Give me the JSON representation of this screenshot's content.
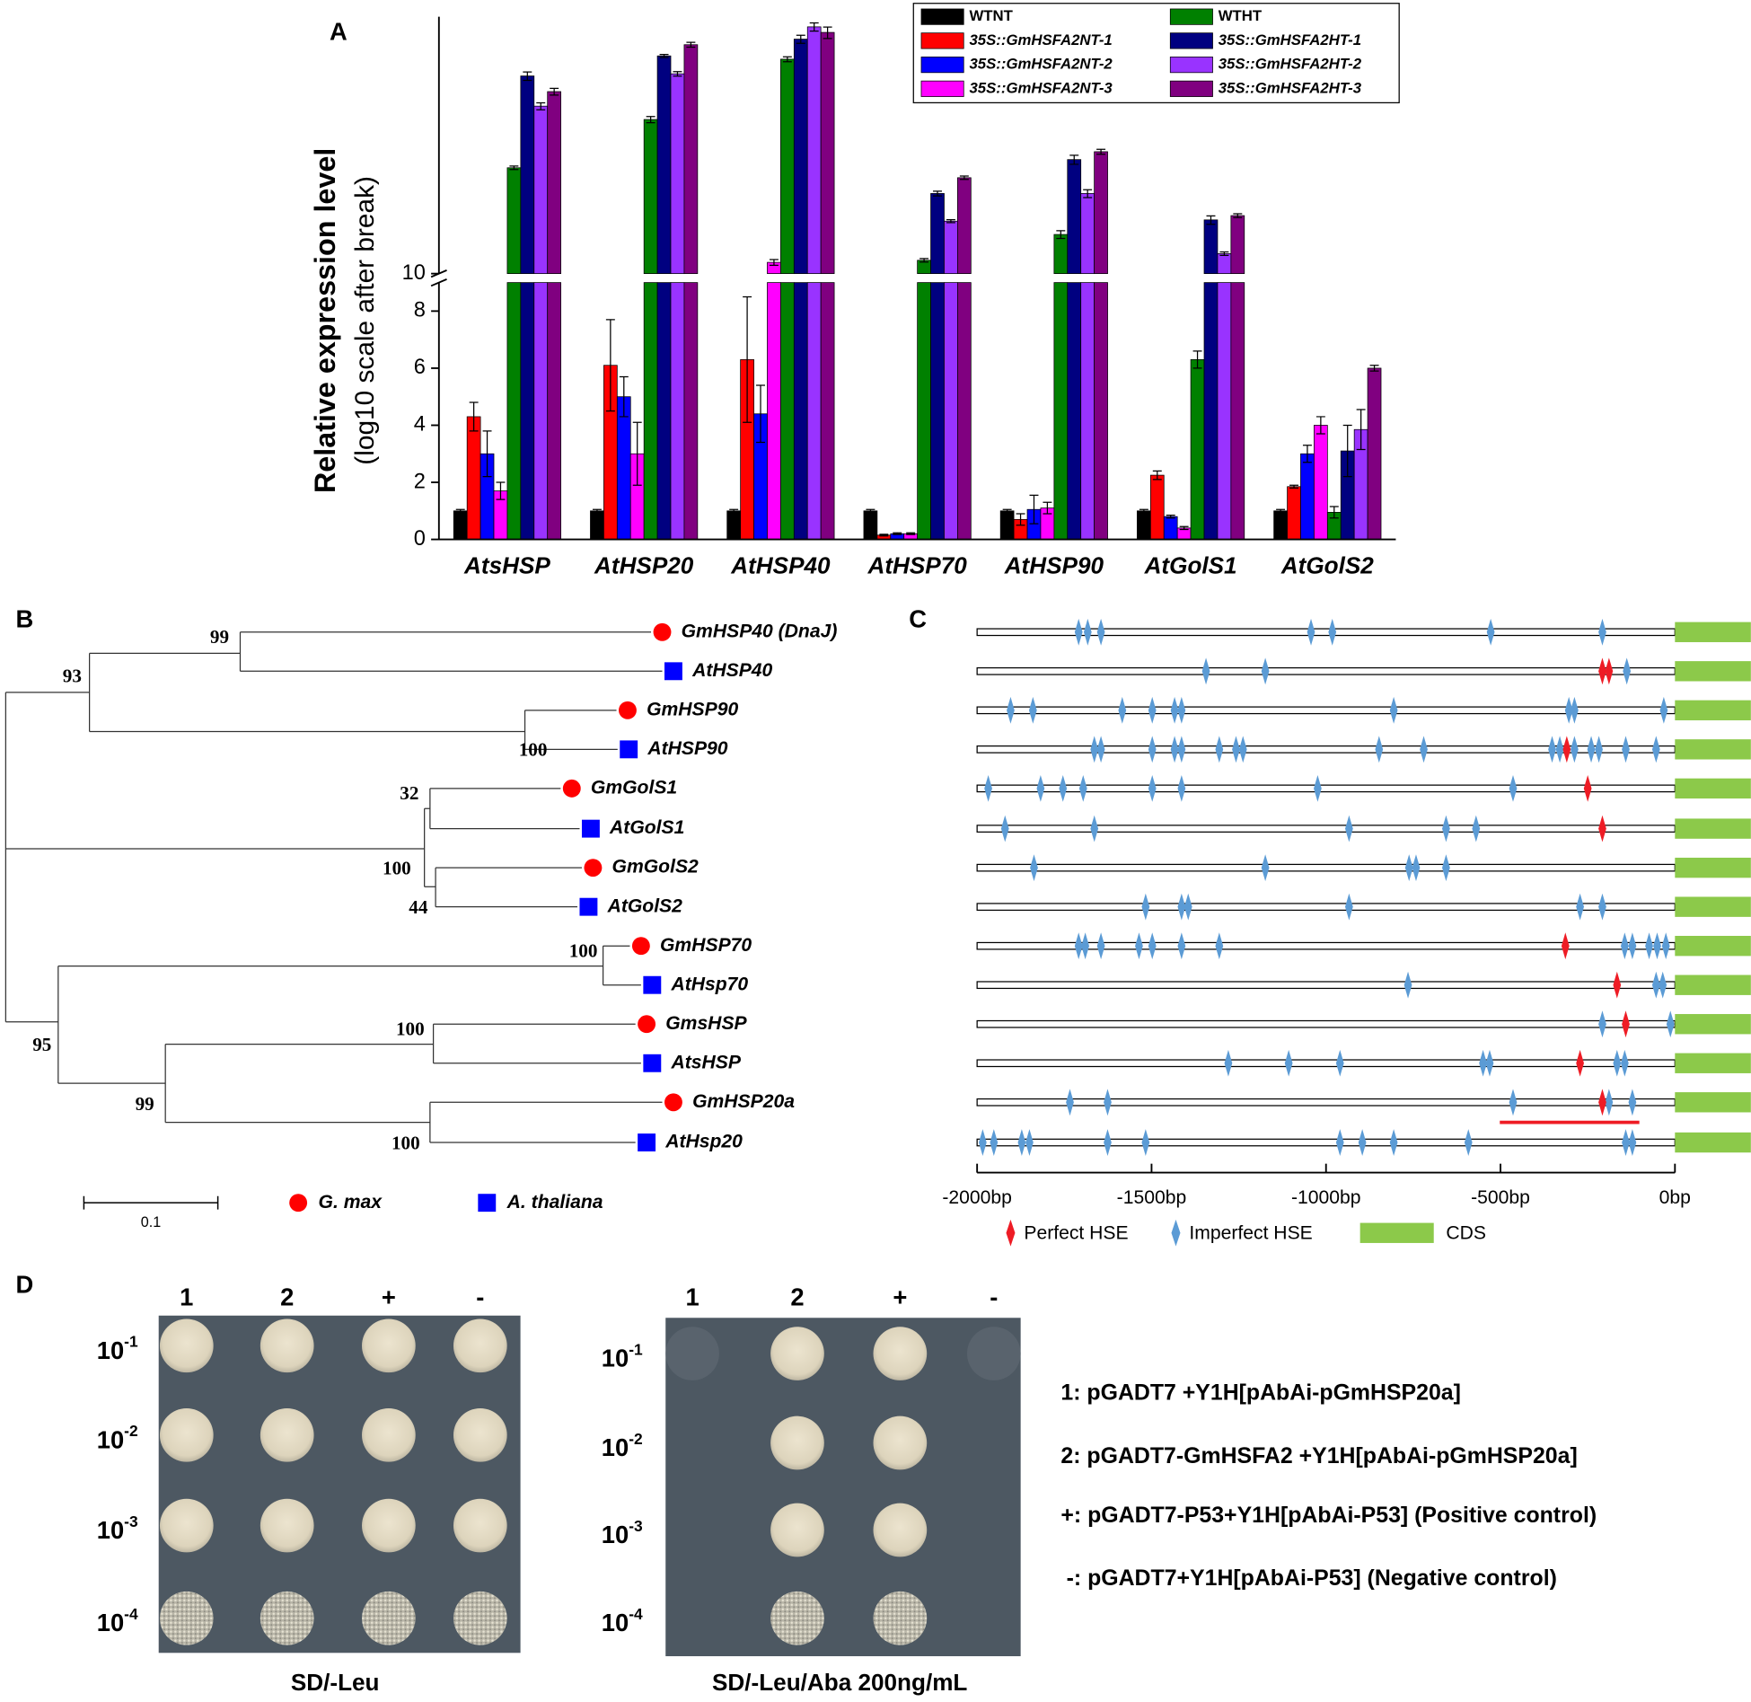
{
  "panels": {
    "A": "A",
    "B": "B",
    "C": "C",
    "D": "D"
  },
  "chart_data": {
    "type": "bar",
    "y_label": "Relative expression level",
    "y_label_sub": "(log10 scale after break)",
    "categories": [
      "AtsHSP",
      "AtHSP20",
      "AtHSP40",
      "AtHSP70",
      "AtHSP90",
      "AtGolS1",
      "AtGolS2"
    ],
    "ylim": [
      0,
      9
    ],
    "yticks": [
      0,
      2,
      4,
      6,
      8
    ],
    "y2lim": [
      10,
      2800
    ],
    "y2ticks": [
      10
    ],
    "y2_log": true,
    "legend": "top-right",
    "series": [
      {
        "name": "WTNT",
        "color": "#000000",
        "values": [
          1,
          1,
          1,
          1,
          1,
          1,
          1
        ],
        "errors": [
          0.05,
          0.05,
          0.05,
          0.05,
          0.05,
          0.05,
          0.05
        ]
      },
      {
        "name": "35S::GmHSFA2NT-1",
        "color": "#ff0000",
        "values": [
          4.3,
          6.1,
          6.3,
          0.15,
          0.7,
          2.25,
          1.85
        ],
        "errors": [
          0.5,
          1.6,
          2.2,
          0.03,
          0.2,
          0.15,
          0.05
        ]
      },
      {
        "name": "35S::GmHSFA2NT-2",
        "color": "#0000ff",
        "values": [
          3.0,
          5.0,
          4.4,
          0.2,
          1.05,
          0.8,
          3.0
        ],
        "errors": [
          0.8,
          0.7,
          1.0,
          0.03,
          0.5,
          0.05,
          0.3
        ]
      },
      {
        "name": "35S::GmHSFA2NT-3",
        "color": "#ff00ff",
        "values": [
          1.7,
          3.0,
          12.8,
          0.2,
          1.1,
          0.4,
          4.0
        ],
        "errors": [
          0.3,
          1.1,
          0.8,
          0.03,
          0.2,
          0.05,
          0.3
        ]
      },
      {
        "name": "WTHT",
        "color": "#008000",
        "values": [
          102,
          294,
          1104,
          13.4,
          23.6,
          6.3,
          0.95
        ],
        "errors": [
          4,
          20,
          60,
          0.5,
          2,
          0.3,
          0.2
        ]
      },
      {
        "name": "35S::GmHSFA2HT-1",
        "color": "#000080",
        "values": [
          764,
          1186,
          1714,
          58,
          122,
          32.5,
          3.1
        ],
        "errors": [
          70,
          40,
          150,
          3,
          12,
          3,
          0.9
        ]
      },
      {
        "name": "35S::GmHSFA2HT-2",
        "color": "#9933ff",
        "values": [
          394,
          801,
          2244,
          31.6,
          58,
          15.5,
          3.85
        ],
        "errors": [
          30,
          40,
          200,
          1,
          5,
          0.6,
          0.7
        ]
      },
      {
        "name": "35S::GmHSFA2HT-3",
        "color": "#800080",
        "values": [
          542,
          1517,
          1986,
          82,
          145,
          35.7,
          6.0
        ],
        "errors": [
          40,
          80,
          250,
          3,
          8,
          1.5,
          0.1
        ]
      }
    ]
  },
  "tree": {
    "leaves": [
      {
        "label": "GmHSP40 (DnaJ)",
        "species": 0
      },
      {
        "label": "AtHSP40",
        "species": 1
      },
      {
        "label": "GmHSP90",
        "species": 0
      },
      {
        "label": "AtHSP90",
        "species": 1
      },
      {
        "label": "GmGolS1",
        "species": 0
      },
      {
        "label": "AtGolS1",
        "species": 1
      },
      {
        "label": "GmGolS2",
        "species": 0
      },
      {
        "label": "AtGolS2",
        "species": 1
      },
      {
        "label": "GmHSP70",
        "species": 0
      },
      {
        "label": "AtHsp70",
        "species": 1
      },
      {
        "label": "GmsHSP",
        "species": 0
      },
      {
        "label": "AtsHSP",
        "species": 1
      },
      {
        "label": "GmHSP20a",
        "species": 0
      },
      {
        "label": "AtHsp20",
        "species": 1
      }
    ],
    "bootstraps": [
      99,
      93,
      100,
      32,
      100,
      44,
      100,
      95,
      100,
      99,
      100
    ],
    "scale": "0.1",
    "species": [
      {
        "name": "G. max",
        "color": "#ff0000"
      },
      {
        "name": "A. thaliana",
        "color": "#0000ff"
      }
    ]
  },
  "promoter": {
    "xlim": [
      -2000,
      0
    ],
    "xticks": [
      {
        "value": -2000,
        "label": "-2000bp"
      },
      {
        "value": -1500,
        "label": "-1500bp"
      },
      {
        "value": -1000,
        "label": "-1000bp"
      },
      {
        "value": -500,
        "label": "-500bp"
      },
      {
        "value": 0,
        "label": "0bp"
      }
    ],
    "legend": [
      {
        "name": "Perfect HSE",
        "color": "#ee1c25"
      },
      {
        "name": "Imperfect HSE",
        "color": "#5b9bd5"
      },
      {
        "name": "CDS",
        "color": "#8cc94a"
      }
    ],
    "rows": [
      {
        "perfect": [],
        "imperfect": [
          -1709,
          -1683,
          -1645,
          -1043,
          -982,
          -528,
          -208
        ]
      },
      {
        "perfect": [
          -208,
          -189
        ],
        "imperfect": [
          -1344,
          -1174,
          -138
        ]
      },
      {
        "perfect": [],
        "imperfect": [
          -1904,
          -1840,
          -1584,
          -1498,
          -1434,
          -1414,
          -806,
          -304,
          -288,
          -32
        ]
      },
      {
        "perfect": [
          -310
        ],
        "imperfect": [
          -1664,
          -1645,
          -1498,
          -1434,
          -1414,
          -1306,
          -1258,
          -1238,
          -848,
          -720,
          -352,
          -330,
          -288,
          -240,
          -218,
          -141,
          -54
        ]
      },
      {
        "perfect": [
          -250
        ],
        "imperfect": [
          -1968,
          -1818,
          -1754,
          -1696,
          -1498,
          -1414,
          -1024,
          -464
        ]
      },
      {
        "perfect": [
          -208
        ],
        "imperfect": [
          -1920,
          -1664,
          -934,
          -656,
          -570
        ]
      },
      {
        "perfect": [],
        "imperfect": [
          -1837,
          -1174,
          -762,
          -742,
          -656
        ]
      },
      {
        "perfect": [],
        "imperfect": [
          -1517,
          -1414,
          -1395,
          -934,
          -272,
          -208
        ]
      },
      {
        "perfect": [
          -314
        ],
        "imperfect": [
          -1709,
          -1690,
          -1645,
          -1536,
          -1498,
          -1414,
          -1306,
          -144,
          -122,
          -74,
          -51,
          -26
        ]
      },
      {
        "perfect": [
          -166
        ],
        "imperfect": [
          -765,
          -54,
          -35
        ]
      },
      {
        "perfect": [
          -141
        ],
        "imperfect": [
          -208,
          -13
        ]
      },
      {
        "perfect": [
          -272
        ],
        "imperfect": [
          -1280,
          -1107,
          -960,
          -550,
          -531,
          -166,
          -144
        ]
      },
      {
        "perfect": [
          -208
        ],
        "imperfect": [
          -1734,
          -1626,
          -464,
          -189,
          -122
        ],
        "underline": [
          -502,
          -102
        ]
      },
      {
        "perfect": [],
        "imperfect": [
          -1984,
          -1952,
          -1872,
          -1850,
          -1626,
          -1517,
          -960,
          -896,
          -806,
          -592,
          -141,
          -122
        ]
      }
    ]
  },
  "yeast": {
    "columns": [
      "1",
      "2",
      "+",
      "-"
    ],
    "dilutions": [
      {
        "base": "10",
        "exponent": "-1"
      },
      {
        "base": "10",
        "exponent": "-2"
      },
      {
        "base": "10",
        "exponent": "-3"
      },
      {
        "base": "10",
        "exponent": "-4"
      }
    ],
    "plates": [
      {
        "caption": "SD/-Leu",
        "growth": [
          [
            "full",
            "full",
            "full",
            "full"
          ],
          [
            "full",
            "full",
            "full",
            "full"
          ],
          [
            "full",
            "full",
            "full",
            "full"
          ],
          [
            "full",
            "full",
            "full",
            "full"
          ]
        ]
      },
      {
        "caption": "SD/-Leu/Aba 200ng/mL",
        "growth": [
          [
            "faint",
            "full",
            "full",
            "faint"
          ],
          [
            "none",
            "full",
            "full",
            "none"
          ],
          [
            "none",
            "full",
            "full",
            "none"
          ],
          [
            "none",
            "full",
            "full",
            "none"
          ]
        ]
      }
    ],
    "key": [
      "1: pGADT7 +Y1H[pAbAi-pGmHSP20a]",
      "2: pGADT7-GmHSFA2 +Y1H[pAbAi-pGmHSP20a]",
      "+: pGADT7-P53+Y1H[pAbAi-P53] (Positive control)",
      "-: pGADT7+Y1H[pAbAi-P53] (Negative control)"
    ]
  }
}
